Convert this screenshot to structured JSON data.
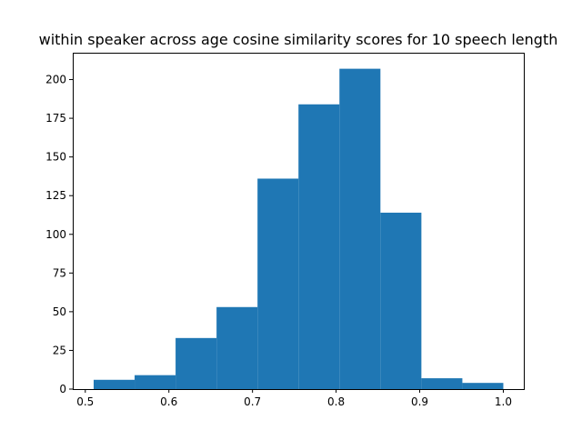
{
  "chart_data": {
    "type": "bar",
    "subtype": "histogram",
    "title": "within speaker across age cosine similarity scores for 10 speech length",
    "xlabel": "",
    "ylabel": "",
    "bins": [
      {
        "start": 0.51,
        "end": 0.559,
        "count": 6
      },
      {
        "start": 0.559,
        "end": 0.608,
        "count": 9
      },
      {
        "start": 0.608,
        "end": 0.657,
        "count": 33
      },
      {
        "start": 0.657,
        "end": 0.706,
        "count": 53
      },
      {
        "start": 0.706,
        "end": 0.755,
        "count": 136
      },
      {
        "start": 0.755,
        "end": 0.804,
        "count": 184
      },
      {
        "start": 0.804,
        "end": 0.853,
        "count": 207
      },
      {
        "start": 0.853,
        "end": 0.902,
        "count": 114
      },
      {
        "start": 0.902,
        "end": 0.951,
        "count": 7
      },
      {
        "start": 0.951,
        "end": 1.0,
        "count": 4
      }
    ],
    "xlim": [
      0.485,
      1.0245
    ],
    "ylim": [
      0,
      217.35
    ],
    "x_ticks": [
      {
        "value": 0.5,
        "label": "0.5"
      },
      {
        "value": 0.6,
        "label": "0.6"
      },
      {
        "value": 0.7,
        "label": "0.7"
      },
      {
        "value": 0.8,
        "label": "0.8"
      },
      {
        "value": 0.9,
        "label": "0.9"
      },
      {
        "value": 1.0,
        "label": "1.0"
      }
    ],
    "y_ticks": [
      {
        "value": 0,
        "label": "0"
      },
      {
        "value": 25,
        "label": "25"
      },
      {
        "value": 50,
        "label": "50"
      },
      {
        "value": 75,
        "label": "75"
      },
      {
        "value": 100,
        "label": "100"
      },
      {
        "value": 125,
        "label": "125"
      },
      {
        "value": 150,
        "label": "150"
      },
      {
        "value": 175,
        "label": "175"
      },
      {
        "value": 200,
        "label": "200"
      }
    ],
    "bar_color": "#1f77b4",
    "grid": false,
    "legend": "none"
  }
}
